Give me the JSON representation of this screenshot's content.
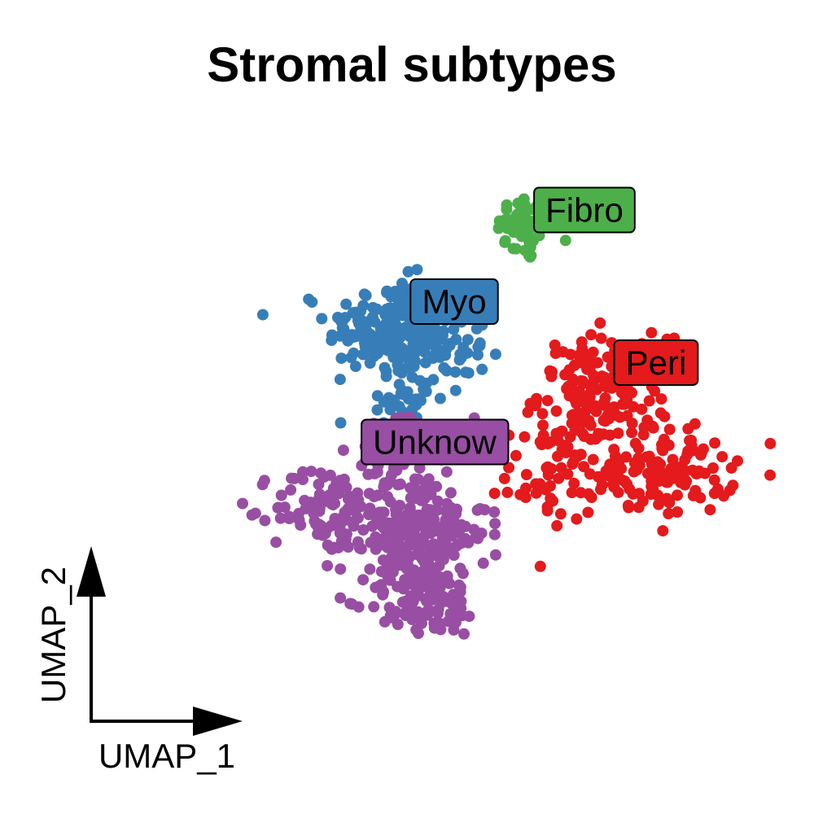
{
  "chart_data": {
    "type": "scatter",
    "title": "Stromal subtypes",
    "xlabel": "UMAP_1",
    "ylabel": "UMAP_2",
    "xlim": [
      0,
      10
    ],
    "ylim": [
      0,
      10
    ],
    "grid": false,
    "legend": "none",
    "series": [
      {
        "name": "Fibro",
        "color": "#4DAF4A",
        "clusters": [
          {
            "cx": 6.2,
            "cy": 8.0,
            "sx": 0.22,
            "sy": 0.28,
            "n": 55
          }
        ]
      },
      {
        "name": "Myo",
        "color": "#377EB8",
        "clusters": [
          {
            "cx": 4.1,
            "cy": 6.4,
            "sx": 0.48,
            "sy": 0.38,
            "n": 180
          },
          {
            "cx": 4.9,
            "cy": 6.0,
            "sx": 0.35,
            "sy": 0.35,
            "n": 60
          },
          {
            "cx": 4.3,
            "cy": 5.2,
            "sx": 0.28,
            "sy": 0.25,
            "n": 35
          }
        ]
      },
      {
        "name": "Peri",
        "color": "#E41A1C",
        "clusters": [
          {
            "cx": 7.4,
            "cy": 5.3,
            "sx": 0.5,
            "sy": 0.45,
            "n": 170
          },
          {
            "cx": 8.3,
            "cy": 4.0,
            "sx": 0.55,
            "sy": 0.35,
            "n": 120
          },
          {
            "cx": 6.6,
            "cy": 4.0,
            "sx": 0.35,
            "sy": 0.4,
            "n": 60
          }
        ]
      },
      {
        "name": "Unknow",
        "color": "#984EA3",
        "clusters": [
          {
            "cx": 4.5,
            "cy": 3.0,
            "sx": 0.55,
            "sy": 0.55,
            "n": 240
          },
          {
            "cx": 3.1,
            "cy": 3.4,
            "sx": 0.4,
            "sy": 0.35,
            "n": 90
          },
          {
            "cx": 4.6,
            "cy": 1.9,
            "sx": 0.45,
            "sy": 0.3,
            "n": 90
          },
          {
            "cx": 4.2,
            "cy": 4.4,
            "sx": 0.3,
            "sy": 0.3,
            "n": 40
          }
        ]
      }
    ],
    "annotations": [
      {
        "text": "Fibro",
        "x": 7.1,
        "y": 8.3,
        "color": "#4DAF4A"
      },
      {
        "text": "Myo",
        "x": 5.1,
        "y": 6.8,
        "color": "#377EB8"
      },
      {
        "text": "Peri",
        "x": 8.2,
        "y": 5.8,
        "color": "#E41A1C"
      },
      {
        "text": "Unknow",
        "x": 4.8,
        "y": 4.5,
        "color": "#984EA3"
      }
    ]
  }
}
